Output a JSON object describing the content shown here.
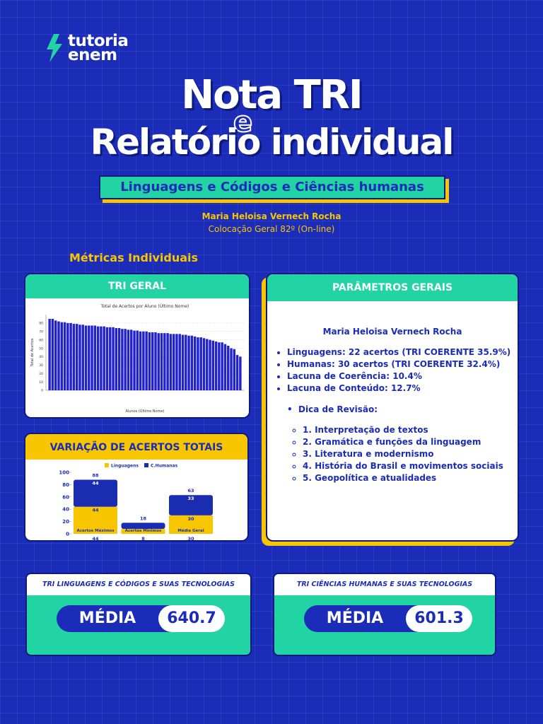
{
  "logo": {
    "line1": "tutoria",
    "line2": "enem"
  },
  "title": {
    "line1": "Nota TRI",
    "connector": "e",
    "line2": "Relatório individual"
  },
  "subtitle": "Linguagens e Códigos e Ciências humanas",
  "student": {
    "name": "Maria Heloisa Vernech Rocha",
    "placement": "Colocação Geral 82º (On-line)"
  },
  "section_title": "Métricas Individuais",
  "panels": {
    "tri_geral": "TRI GERAL",
    "parametros": "PARÂMETROS GERAIS"
  },
  "chart_data": [
    {
      "type": "bar",
      "title": "Total de Acertos por Aluno (Último Nome)",
      "x_label": "Alunos (Último Nome)",
      "y_label": "Total de Acertos",
      "categories": [
        null,
        null,
        null,
        null,
        null,
        null,
        null,
        null,
        null,
        null,
        null,
        null,
        null,
        null,
        null,
        null,
        null,
        null,
        null,
        null,
        null,
        null,
        null,
        null,
        null,
        null,
        null,
        null,
        null,
        null,
        null,
        null,
        null,
        null,
        null,
        null,
        null,
        null,
        null,
        null,
        null,
        null,
        null,
        null,
        null,
        null,
        null,
        null,
        null,
        null,
        null,
        null,
        null,
        null,
        null,
        null,
        null,
        null,
        null,
        null,
        null,
        null,
        null,
        null
      ],
      "values": [
        85,
        85,
        83,
        82,
        81,
        81,
        80,
        80,
        79,
        79,
        78,
        78,
        77,
        77,
        77,
        77,
        76,
        76,
        76,
        75,
        75,
        75,
        74,
        74,
        73,
        73,
        72,
        72,
        71,
        71,
        70,
        70,
        70,
        69,
        69,
        69,
        68,
        68,
        68,
        68,
        67,
        67,
        67,
        67,
        66,
        66,
        65,
        65,
        64,
        63,
        63,
        62,
        61,
        60,
        59,
        58,
        57,
        57,
        55,
        53,
        50,
        49,
        42,
        40
      ],
      "color": "#2222cc",
      "ylim": [
        0,
        90
      ],
      "yticks": [
        0,
        10,
        20,
        30,
        40,
        50,
        60,
        70,
        80
      ],
      "grid": true
    },
    {
      "type": "stacked_bar",
      "title": "VARIAÇÃO DE ACERTOS TOTAIS",
      "categories": [
        "Acertos Máximos",
        "Acertos Mínimos",
        "Média Geral"
      ],
      "series": [
        {
          "name": "Linguagens",
          "color": "#f7c600",
          "values": [
            44,
            8,
            30
          ]
        },
        {
          "name": "C.Humanas",
          "color": "#1a2db0",
          "values": [
            44,
            10,
            33
          ]
        }
      ],
      "totals": [
        88,
        18,
        63
      ],
      "ylim": [
        0,
        100
      ],
      "yticks": [
        0,
        20,
        40,
        60,
        80,
        100
      ]
    }
  ],
  "parametros": {
    "name": "Maria Heloisa Vernech Rocha",
    "items": [
      "Linguagens: 22 acertos (TRI COERENTE 35.9%)",
      "Humanas: 30 acertos (TRI COERENTE 32.4%)",
      "Lacuna de Coerência: 10.4%",
      "Lacuna de Conteúdo: 12.7%"
    ],
    "tip_title": "Dica de Revisão:",
    "tips": [
      "1. Interpretação de textos",
      "2. Gramática e funções da linguagem",
      "3. Literatura e modernismo",
      "4. História do Brasil e movimentos sociais",
      "5. Geopolítica e atualidades"
    ]
  },
  "scores": [
    {
      "title": "TRI LINGUAGENS E CÓDIGOS E SUAS TECNOLOGIAS",
      "label": "MÉDIA",
      "value": 640.7
    },
    {
      "title": "TRI CIÊNCIAS HUMANAS E SUAS TECNOLOGIAS",
      "label": "MÉDIA",
      "value": 601.3
    }
  ]
}
